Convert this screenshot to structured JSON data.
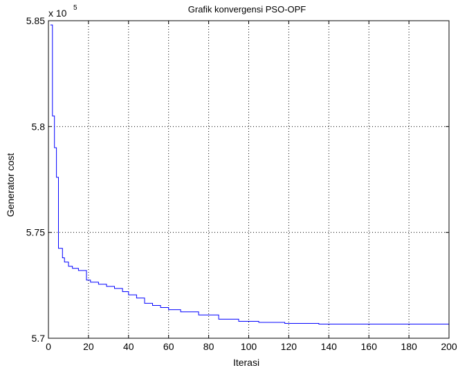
{
  "chart_data": {
    "type": "line",
    "title": "Grafik konvergensi PSO-OPF",
    "xlabel": "Iterasi",
    "ylabel": "Generator cost",
    "y_exponent_label": "x 10",
    "y_exponent_power": "5",
    "xlim": [
      0,
      200
    ],
    "ylim": [
      5.7,
      5.85
    ],
    "x_ticks": [
      0,
      20,
      40,
      60,
      80,
      100,
      120,
      140,
      160,
      180,
      200
    ],
    "x_tick_labels": [
      "0",
      "20",
      "40",
      "60",
      "80",
      "100",
      "120",
      "140",
      "160",
      "180",
      "200"
    ],
    "y_ticks": [
      5.7,
      5.75,
      5.8,
      5.85
    ],
    "y_tick_labels": [
      "5.7",
      "5.75",
      "5.8",
      "5.85"
    ],
    "grid": true,
    "line_color": "#0000ff",
    "series": [
      {
        "x": [
          1,
          2,
          2,
          3,
          3,
          4,
          4,
          5,
          5,
          7,
          7,
          8,
          8,
          10,
          10,
          12,
          12,
          15,
          15,
          19,
          19,
          21,
          21,
          25,
          25,
          29,
          29,
          33,
          33,
          37,
          37,
          40,
          40,
          44,
          44,
          48,
          48,
          52,
          52,
          56,
          56,
          60,
          60,
          66,
          66,
          75,
          75,
          85,
          85,
          95,
          95,
          105,
          105,
          118,
          118,
          135,
          135,
          200
        ],
        "y": [
          5.848,
          5.848,
          5.805,
          5.805,
          5.79,
          5.79,
          5.776,
          5.776,
          5.7425,
          5.7425,
          5.738,
          5.738,
          5.736,
          5.736,
          5.734,
          5.734,
          5.733,
          5.733,
          5.732,
          5.732,
          5.7275,
          5.7275,
          5.7265,
          5.7265,
          5.7255,
          5.7255,
          5.7245,
          5.7245,
          5.7235,
          5.7235,
          5.722,
          5.722,
          5.7205,
          5.7205,
          5.719,
          5.719,
          5.7165,
          5.7165,
          5.7155,
          5.7155,
          5.7145,
          5.7145,
          5.7135,
          5.7135,
          5.7125,
          5.7125,
          5.711,
          5.711,
          5.709,
          5.709,
          5.708,
          5.708,
          5.7075,
          5.7075,
          5.707,
          5.707,
          5.7067,
          5.7067
        ]
      }
    ]
  }
}
